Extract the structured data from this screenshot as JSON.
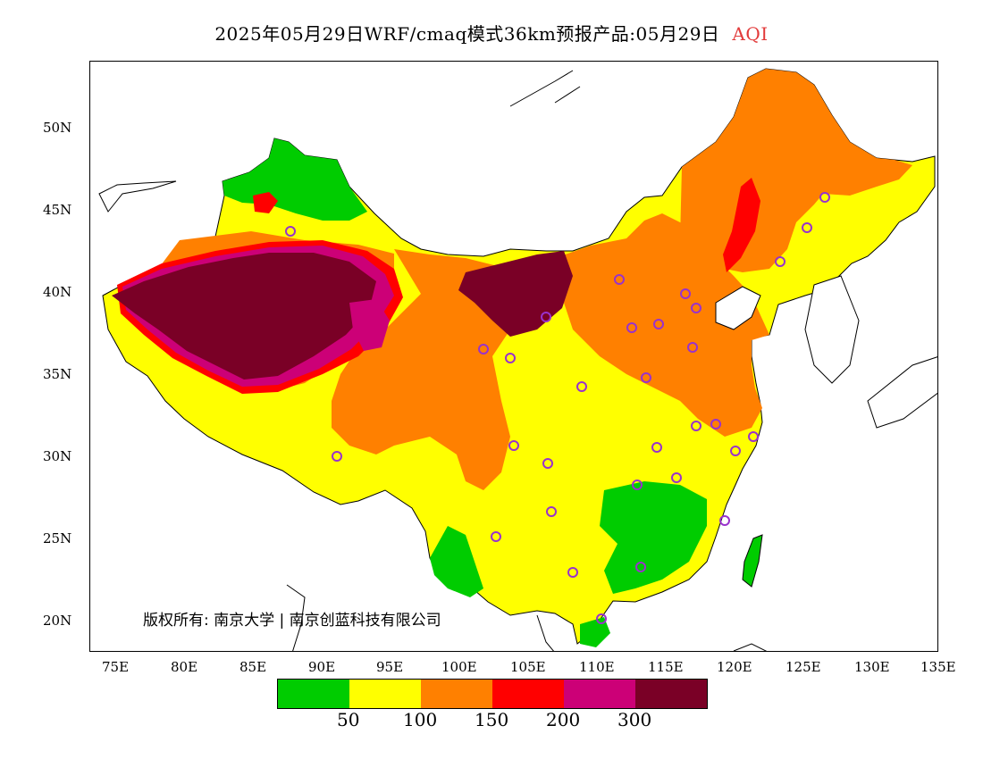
{
  "title": {
    "main": "2025年05月29日WRF/cmaq模式36km预报产品:05月29日",
    "variable": "AQI"
  },
  "axes": {
    "lat_labels": [
      "50N",
      "45N",
      "40N",
      "35N",
      "30N",
      "25N",
      "20N"
    ],
    "lon_labels": [
      "75E",
      "80E",
      "85E",
      "90E",
      "95E",
      "100E",
      "105E",
      "110E",
      "115E",
      "120E",
      "125E",
      "130E",
      "135E"
    ]
  },
  "copyright": "版权所有: 南京大学 | 南京创蓝科技有限公司",
  "legend": {
    "colors": [
      "#00cc00",
      "#ffff00",
      "#ff8000",
      "#ff0000",
      "#cc0077",
      "#7a0026"
    ],
    "labels": [
      "50",
      "100",
      "150",
      "200",
      "300"
    ]
  },
  "map_data": {
    "region_lon_range": [
      73,
      135
    ],
    "region_lat_range": [
      18,
      54
    ],
    "station_marker_color": "#9932cc"
  }
}
